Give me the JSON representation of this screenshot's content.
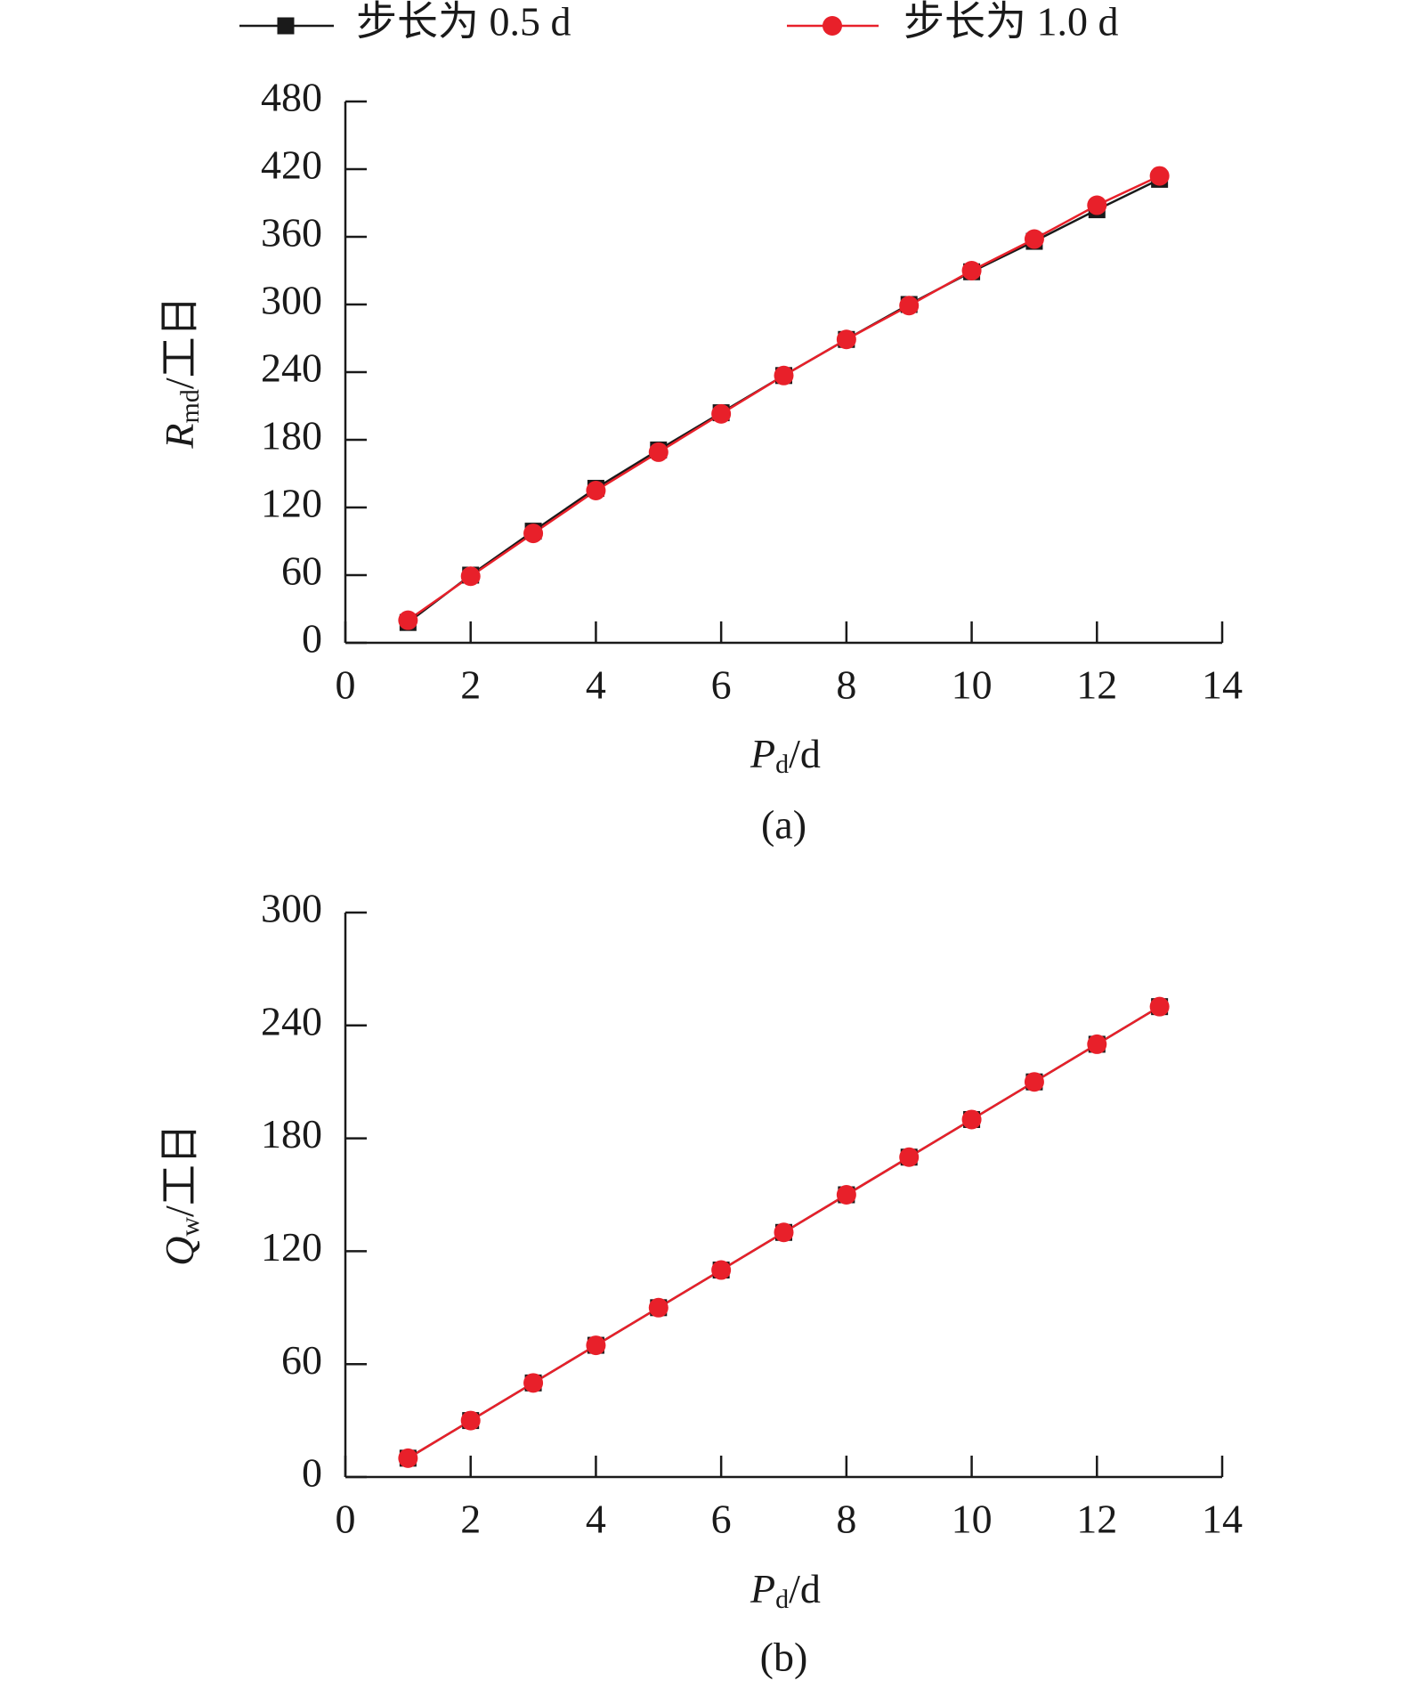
{
  "chart_data": [
    {
      "type": "line",
      "caption": "(a)",
      "xlabel": [
        "P",
        "d",
        "/d"
      ],
      "ylabel": [
        "R",
        "md",
        "/工日"
      ],
      "xlim": [
        0,
        14
      ],
      "xticks": [
        0,
        2,
        4,
        6,
        8,
        10,
        12,
        14
      ],
      "ylim": [
        0,
        480
      ],
      "yticks": [
        0,
        60,
        120,
        180,
        240,
        300,
        360,
        420,
        480
      ],
      "x": [
        1,
        2,
        3,
        4,
        5,
        6,
        7,
        8,
        9,
        10,
        11,
        12,
        13
      ],
      "series": [
        {
          "name": "步长为 0.5 d",
          "color": "#1a1a1a",
          "marker": "square",
          "values": [
            18,
            60,
            99,
            137,
            171,
            204,
            237,
            269,
            300,
            329,
            356,
            384,
            411
          ]
        },
        {
          "name": "步长为 1.0 d",
          "color": "#e8202a",
          "marker": "circle",
          "values": [
            20,
            59,
            97,
            135,
            169,
            203,
            237,
            269,
            299,
            330,
            358,
            388,
            414
          ]
        }
      ]
    },
    {
      "type": "line",
      "caption": "(b)",
      "xlabel": [
        "P",
        "d",
        "/d"
      ],
      "ylabel": [
        "Q",
        "w",
        "/工日"
      ],
      "xlim": [
        0,
        14
      ],
      "xticks": [
        0,
        2,
        4,
        6,
        8,
        10,
        12,
        14
      ],
      "ylim": [
        0,
        300
      ],
      "yticks": [
        0,
        60,
        120,
        180,
        240,
        300
      ],
      "x": [
        1,
        2,
        3,
        4,
        5,
        6,
        7,
        8,
        9,
        10,
        11,
        12,
        13
      ],
      "series": [
        {
          "color": "#1a1a1a",
          "marker": "square",
          "values": [
            10,
            30,
            50,
            70,
            90,
            110,
            130,
            150,
            170,
            190,
            210,
            230,
            250
          ]
        },
        {
          "color": "#e8202a",
          "marker": "circle",
          "values": [
            10,
            30,
            50,
            70,
            90,
            110,
            130,
            150,
            170,
            190,
            210,
            230,
            250
          ]
        }
      ]
    }
  ]
}
